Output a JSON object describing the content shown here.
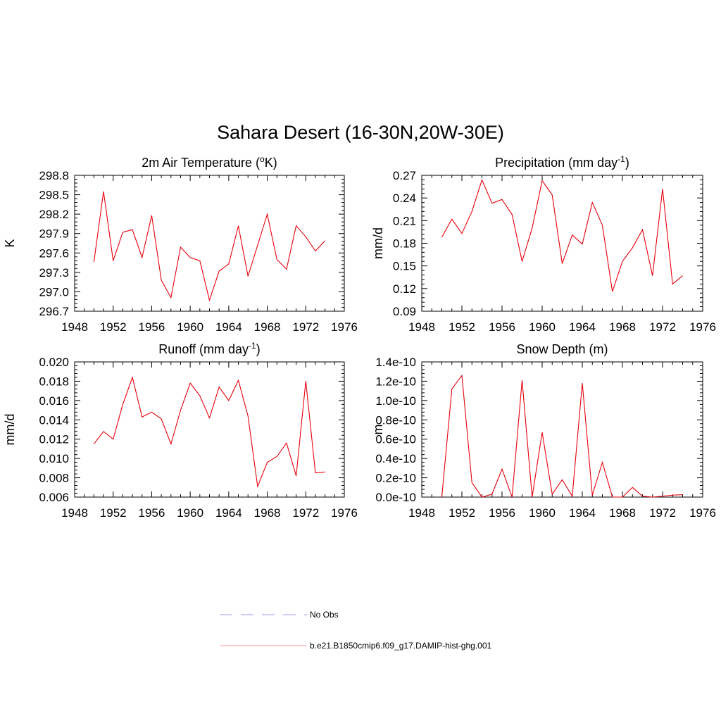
{
  "figure": {
    "title": "Sahara Desert (16-30N,20W-30E)"
  },
  "colors": {
    "model_line": "#e8000b",
    "obs_line": "#9999ee",
    "legend_model_line": "#ff9a9a"
  },
  "legend": {
    "placement": "bottom-center",
    "entries": [
      {
        "label": "No Obs",
        "style": "dashed",
        "color": "#9999ee"
      },
      {
        "label": "b.e21.B1850cmip6.f09_g17.DAMIP-hist-ghg.001",
        "style": "solid",
        "color": "#e8000b"
      }
    ]
  },
  "chart_data": [
    {
      "type": "line",
      "title_main": "2m Air Temperature (",
      "title_sup": "o",
      "title_end": "K)",
      "ylabel": "K",
      "xlim": [
        1948,
        1976
      ],
      "ylim": [
        296.7,
        298.8
      ],
      "xticks": [
        "1948",
        "1952",
        "1956",
        "1960",
        "1964",
        "1968",
        "1972",
        "1976"
      ],
      "yticks": [
        "296.7",
        "297.0",
        "297.3",
        "297.6",
        "297.9",
        "298.2",
        "298.5",
        "298.8"
      ],
      "grid": false,
      "x": [
        1950,
        1951,
        1952,
        1953,
        1954,
        1955,
        1956,
        1957,
        1958,
        1959,
        1960,
        1961,
        1962,
        1963,
        1964,
        1965,
        1966,
        1967,
        1968,
        1969,
        1970,
        1971,
        1972,
        1973,
        1974
      ],
      "series": [
        {
          "name": "b.e21.B1850cmip6.f09_g17.DAMIP-hist-ghg.001",
          "values": [
            297.46,
            298.55,
            297.48,
            297.92,
            297.96,
            297.53,
            298.18,
            297.18,
            296.91,
            297.69,
            297.53,
            297.48,
            296.87,
            297.32,
            297.43,
            298.02,
            297.24,
            297.72,
            298.2,
            297.5,
            297.35,
            298.02,
            297.85,
            297.63,
            297.79
          ]
        }
      ]
    },
    {
      "type": "line",
      "title_main": "Precipitation (mm day",
      "title_sup": "-1",
      "title_end": ")",
      "ylabel": "mm/d",
      "xlim": [
        1948,
        1976
      ],
      "ylim": [
        0.09,
        0.27
      ],
      "xticks": [
        "1948",
        "1952",
        "1956",
        "1960",
        "1964",
        "1968",
        "1972",
        "1976"
      ],
      "yticks": [
        "0.09",
        "0.12",
        "0.15",
        "0.18",
        "0.21",
        "0.24",
        "0.27"
      ],
      "grid": false,
      "x": [
        1950,
        1951,
        1952,
        1953,
        1954,
        1955,
        1956,
        1957,
        1958,
        1959,
        1960,
        1961,
        1962,
        1963,
        1964,
        1965,
        1966,
        1967,
        1968,
        1969,
        1970,
        1971,
        1972,
        1973,
        1974
      ],
      "series": [
        {
          "name": "b.e21.B1850cmip6.f09_g17.DAMIP-hist-ghg.001",
          "values": [
            0.188,
            0.212,
            0.193,
            0.222,
            0.264,
            0.233,
            0.238,
            0.218,
            0.156,
            0.2,
            0.263,
            0.244,
            0.153,
            0.191,
            0.179,
            0.234,
            0.204,
            0.116,
            0.156,
            0.174,
            0.198,
            0.137,
            0.252,
            0.126,
            0.137
          ]
        }
      ]
    },
    {
      "type": "line",
      "title_main": "Runoff (mm day",
      "title_sup": "-1",
      "title_end": ")",
      "ylabel": "mm/d",
      "xlim": [
        1948,
        1976
      ],
      "ylim": [
        0.006,
        0.02
      ],
      "xticks": [
        "1948",
        "1952",
        "1956",
        "1960",
        "1964",
        "1968",
        "1972",
        "1976"
      ],
      "yticks": [
        "0.006",
        "0.008",
        "0.010",
        "0.012",
        "0.014",
        "0.016",
        "0.018",
        "0.020"
      ],
      "grid": false,
      "x": [
        1950,
        1951,
        1952,
        1953,
        1954,
        1955,
        1956,
        1957,
        1958,
        1959,
        1960,
        1961,
        1962,
        1963,
        1964,
        1965,
        1966,
        1967,
        1968,
        1969,
        1970,
        1971,
        1972,
        1973,
        1974
      ],
      "series": [
        {
          "name": "b.e21.B1850cmip6.f09_g17.DAMIP-hist-ghg.001",
          "values": [
            0.0115,
            0.0128,
            0.012,
            0.0156,
            0.0184,
            0.0143,
            0.0148,
            0.0141,
            0.0115,
            0.015,
            0.0178,
            0.0165,
            0.0142,
            0.0174,
            0.016,
            0.0181,
            0.0144,
            0.0071,
            0.0096,
            0.0102,
            0.0116,
            0.0082,
            0.018,
            0.0085,
            0.0086
          ]
        }
      ]
    },
    {
      "type": "line",
      "title_main": "Snow Depth (m)",
      "title_sup": "",
      "title_end": "",
      "ylabel": "m",
      "xlim": [
        1948,
        1976
      ],
      "ylim": [
        0,
        1.4e-10
      ],
      "xticks": [
        "1948",
        "1952",
        "1956",
        "1960",
        "1964",
        "1968",
        "1972",
        "1976"
      ],
      "yticks": [
        "0.0e-10",
        "0.2e-10",
        "0.4e-10",
        "0.6e-10",
        "0.8e-10",
        "1.0e-10",
        "1.2e-10",
        "1.4e-10"
      ],
      "grid": false,
      "x": [
        1950,
        1951,
        1952,
        1953,
        1954,
        1955,
        1956,
        1957,
        1958,
        1959,
        1960,
        1961,
        1962,
        1963,
        1964,
        1965,
        1966,
        1967,
        1968,
        1969,
        1970,
        1971,
        1972,
        1973,
        1974
      ],
      "series": [
        {
          "name": "b.e21.B1850cmip6.f09_g17.DAMIP-hist-ghg.001",
          "values": [
            0,
            1.12e-10,
            1.26e-10,
            1.5e-11,
            0,
            3e-12,
            2.9e-11,
            0,
            1.21e-10,
            0,
            6.7e-11,
            3e-12,
            1.8e-11,
            1e-12,
            1.18e-10,
            2e-12,
            3.6e-11,
            0,
            0,
            1e-11,
            1e-12,
            0,
            1e-12,
            2e-12,
            2.5e-12
          ]
        }
      ]
    }
  ]
}
